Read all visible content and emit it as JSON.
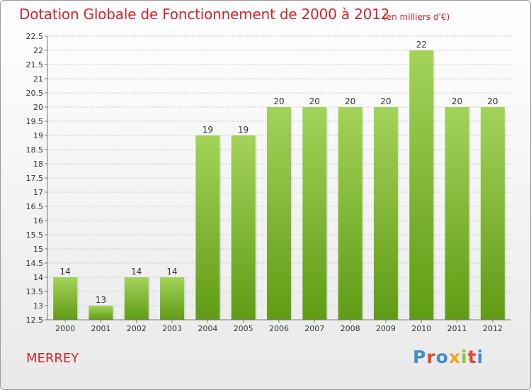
{
  "header": {
    "title": "Dotation Globale de Fonctionnement de 2000 à 2012",
    "unit": "(en milliers d'€)"
  },
  "footer": {
    "commune": "MERREY",
    "brand": {
      "text": "Proxiti",
      "letter_colors": [
        "#3d8fd6",
        "#e8462f",
        "#3d8fd6",
        "#f3a51c",
        "#8fc43d",
        "#e8462f",
        "#3d8fd6"
      ]
    }
  },
  "colors": {
    "title": "#d2232a",
    "bar_top": "#a3d35a",
    "bar_bottom": "#5f9c14",
    "grid": "#c8c8c8",
    "axis": "#777777"
  },
  "chart_data": {
    "type": "bar",
    "categories": [
      "2000",
      "2001",
      "2002",
      "2003",
      "2004",
      "2005",
      "2006",
      "2007",
      "2008",
      "2009",
      "2010",
      "2011",
      "2012"
    ],
    "values": [
      14,
      13,
      14,
      14,
      19,
      19,
      20,
      20,
      20,
      20,
      22,
      20,
      20
    ],
    "data_labels": [
      "14",
      "13",
      "14",
      "14",
      "19",
      "19",
      "20",
      "20",
      "20",
      "20",
      "22",
      "20",
      "20"
    ],
    "ylim": [
      12.5,
      22.5
    ],
    "yticks": [
      12.5,
      13,
      13.5,
      14,
      14.5,
      15,
      15.5,
      16,
      16.5,
      17,
      17.5,
      18,
      18.5,
      19,
      19.5,
      20,
      20.5,
      21,
      21.5,
      22,
      22.5
    ],
    "ytick_labels": [
      "12.5",
      "13",
      "13.5",
      "14",
      "14.5",
      "15",
      "15.5",
      "16",
      "16.5",
      "17",
      "17.5",
      "18",
      "18.5",
      "19",
      "19.5",
      "20",
      "20.5",
      "21",
      "21.5",
      "22",
      "22.5"
    ],
    "grid": true,
    "title": "Dotation Globale de Fonctionnement de 2000 à 2012",
    "xlabel": "",
    "ylabel": ""
  }
}
